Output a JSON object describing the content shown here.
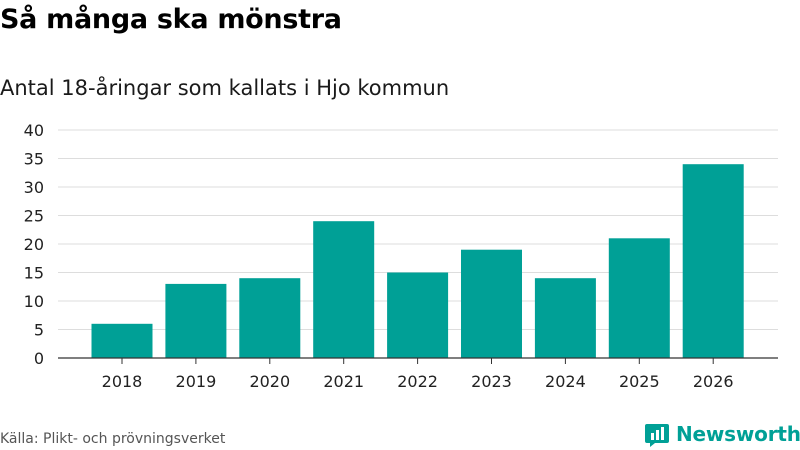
{
  "title": "Så många ska mönstra",
  "subtitle": "Antal 18-åringar som kallats i Hjo kommun",
  "source": "Källa: Plikt- och prövningsverket",
  "brand": "Newsworthy",
  "colors": {
    "bar": "#00a096",
    "grid": "#dddddd",
    "axis": "#333333",
    "brand": "#00a096"
  },
  "chart_data": {
    "type": "bar",
    "title": "Så många ska mönstra",
    "subtitle": "Antal 18-åringar som kallats i Hjo kommun",
    "categories": [
      "2018",
      "2019",
      "2020",
      "2021",
      "2022",
      "2023",
      "2024",
      "2025",
      "2026"
    ],
    "values": [
      6,
      13,
      14,
      24,
      15,
      19,
      14,
      21,
      34
    ],
    "xlabel": "",
    "ylabel": "",
    "ylim": [
      0,
      40
    ],
    "yticks": [
      0,
      5,
      10,
      15,
      20,
      25,
      30,
      35,
      40
    ],
    "grid": true,
    "legend": "none"
  }
}
